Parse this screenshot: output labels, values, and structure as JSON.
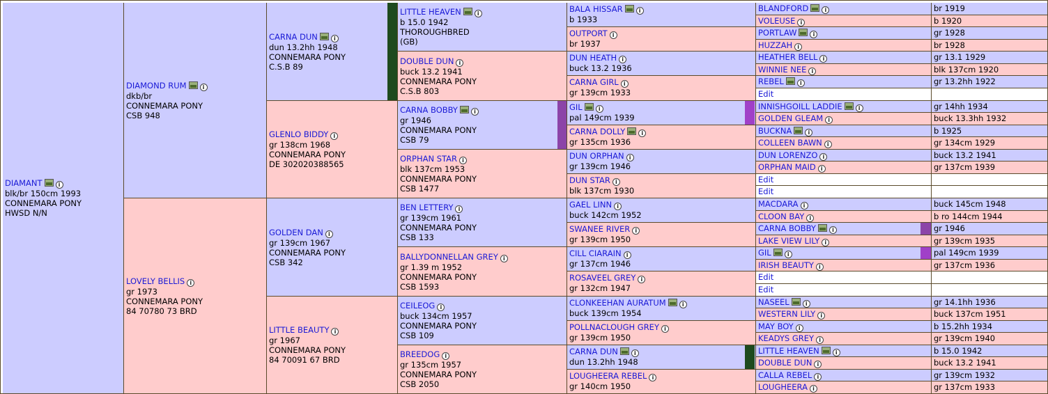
{
  "colors": {
    "male": "#ccccff",
    "female": "#ffcccc",
    "link": "#1a1ad6",
    "marker_dark_green": "#1e4a1e",
    "marker_purple": "#8c44a8",
    "marker_magenta": "#a040c8"
  },
  "icons": {
    "photo": "photo-icon",
    "info": "info-icon"
  },
  "gen1": [
    {
      "name": "DIAMANT",
      "lines": [
        "blk/br 150cm 1993",
        "CONNEMARA PONY",
        "HWSD N/N"
      ],
      "sex": "m"
    }
  ],
  "gen2": [
    {
      "name": "DIAMOND RUM",
      "lines": [
        "dkb/br",
        "CONNEMARA PONY",
        "CSB 948"
      ],
      "sex": "m"
    },
    {
      "name": "LOVELY BELLIS",
      "lines": [
        "gr 1973",
        "CONNEMARA PONY",
        "84 70780 73 BRD"
      ],
      "sex": "f"
    }
  ],
  "gen3": [
    {
      "name": "CARNA DUN",
      "lines": [
        "dun 13.2hh 1948",
        "CONNEMARA PONY",
        "C.S.B 89"
      ],
      "sex": "m"
    },
    {
      "name": "GLENLO BIDDY",
      "lines": [
        "gr 138cm 1968",
        "CONNEMARA PONY",
        "DE 302020388565"
      ],
      "sex": "f"
    },
    {
      "name": "GOLDEN DAN",
      "lines": [
        "gr 139cm 1967",
        "CONNEMARA PONY",
        "CSB 342"
      ],
      "sex": "m"
    },
    {
      "name": "LITTLE BEAUTY",
      "lines": [
        "gr 1967",
        "CONNEMARA PONY",
        "84 70091 67 BRD"
      ],
      "sex": "f"
    }
  ],
  "gen4": [
    {
      "name": "LITTLE HEAVEN",
      "lines": [
        "b 15.0 1942",
        "THOROUGHBRED",
        "(GB)"
      ],
      "sex": "m"
    },
    {
      "name": "DOUBLE DUN",
      "lines": [
        "buck 13.2 1941",
        "CONNEMARA PONY",
        "C.S.B 803"
      ],
      "sex": "f"
    },
    {
      "name": "CARNA BOBBY",
      "lines": [
        "gr 1946",
        "CONNEMARA PONY",
        "CSB 79"
      ],
      "sex": "m"
    },
    {
      "name": "ORPHAN STAR",
      "lines": [
        "blk 137cm 1953",
        "CONNEMARA PONY",
        "CSB 1477"
      ],
      "sex": "f"
    },
    {
      "name": "BEN LETTERY",
      "lines": [
        "gr 139cm 1961",
        "CONNEMARA PONY",
        "CSB 133"
      ],
      "sex": "m"
    },
    {
      "name": "BALLYDONNELLAN GREY",
      "lines": [
        "gr 1.39 m 1952",
        "CONNEMARA PONY",
        "CSB 1593"
      ],
      "sex": "f"
    },
    {
      "name": "CEILEOG",
      "lines": [
        "buck 134cm 1957",
        "CONNEMARA PONY",
        "CSB 109"
      ],
      "sex": "m"
    },
    {
      "name": "BREEDOG",
      "lines": [
        "gr 135cm 1957",
        "CONNEMARA PONY",
        "CSB 2050"
      ],
      "sex": "f"
    }
  ],
  "gen5": [
    {
      "name": "BALA HISSAR",
      "info": "b 1933",
      "sex": "m"
    },
    {
      "name": "OUTPORT",
      "info": "br 1937",
      "sex": "f"
    },
    {
      "name": "DUN HEATH",
      "info": "buck 13.2 1936",
      "sex": "m"
    },
    {
      "name": "CARNA GIRL",
      "info": "gr 139cm 1933",
      "sex": "f"
    },
    {
      "name": "GIL",
      "info": "pal 149cm 1939",
      "sex": "m"
    },
    {
      "name": "CARNA DOLLY",
      "info": "gr 135cm 1936",
      "sex": "f"
    },
    {
      "name": "DUN ORPHAN",
      "info": "gr 139cm 1946",
      "sex": "m"
    },
    {
      "name": "DUN STAR",
      "info": "blk 137cm 1930",
      "sex": "f"
    },
    {
      "name": "GAEL LINN",
      "info": "buck 142cm 1952",
      "sex": "m"
    },
    {
      "name": "SWANEE RIVER",
      "info": "gr 139cm 1950",
      "sex": "f"
    },
    {
      "name": "CILL CIARAIN",
      "info": "gr 137cm 1946",
      "sex": "m"
    },
    {
      "name": "ROSAVEEL GREY",
      "info": "gr 132cm 1947",
      "sex": "f"
    },
    {
      "name": "CLONKEEHAN AURATUM",
      "info": "buck 139cm 1954",
      "sex": "m"
    },
    {
      "name": "POLLNACLOUGH GREY",
      "info": "gr 139cm 1950",
      "sex": "f"
    },
    {
      "name": "CARNA DUN",
      "info": "dun 13.2hh 1948",
      "sex": "m"
    },
    {
      "name": "LOUGHEERA REBEL",
      "info": "gr 140cm 1950",
      "sex": "f"
    }
  ],
  "gen6": [
    {
      "name": "BLANDFORD",
      "info": "br 1919",
      "sex": "m"
    },
    {
      "name": "VOLEUSE",
      "info": "b 1920",
      "sex": "f"
    },
    {
      "name": "PORTLAW",
      "info": "gr 1928",
      "sex": "m"
    },
    {
      "name": "HUZZAH",
      "info": "br 1928",
      "sex": "f"
    },
    {
      "name": "HEATHER BELL",
      "info": "gr 13.1 1929",
      "sex": "m"
    },
    {
      "name": "WINNIE NEE",
      "info": "blk 137cm 1920",
      "sex": "f"
    },
    {
      "name": "REBEL",
      "info": "gr 13.2hh 1922",
      "sex": "m"
    },
    {
      "name": "Edit",
      "info": "",
      "sex": "w"
    },
    {
      "name": "INNISHGOILL LADDIE",
      "info": "gr 14hh 1934",
      "sex": "m"
    },
    {
      "name": "GOLDEN GLEAM",
      "info": "buck 13.3hh 1932",
      "sex": "f"
    },
    {
      "name": "BUCKNA",
      "info": "b 1925",
      "sex": "m"
    },
    {
      "name": "COLLEEN BAWN",
      "info": "gr 134cm 1929",
      "sex": "f"
    },
    {
      "name": "DUN LORENZO",
      "info": "buck 13.2 1941",
      "sex": "m"
    },
    {
      "name": "ORPHAN MAID",
      "info": "gr 137cm 1939",
      "sex": "f"
    },
    {
      "name": "Edit",
      "info": "",
      "sex": "w"
    },
    {
      "name": "Edit",
      "info": "",
      "sex": "w"
    },
    {
      "name": "MACDARA",
      "info": "buck 145cm 1948",
      "sex": "m"
    },
    {
      "name": "CLOON BAY",
      "info": "b ro 144cm 1944",
      "sex": "f"
    },
    {
      "name": "CARNA BOBBY",
      "info": "gr 1946",
      "sex": "m"
    },
    {
      "name": "LAKE VIEW LILY",
      "info": "gr 139cm 1935",
      "sex": "f"
    },
    {
      "name": "GIL",
      "info": "pal 149cm 1939",
      "sex": "m"
    },
    {
      "name": "IRISH BEAUTY",
      "info": "gr 137cm 1936",
      "sex": "f"
    },
    {
      "name": "Edit",
      "info": "",
      "sex": "w"
    },
    {
      "name": "Edit",
      "info": "",
      "sex": "w"
    },
    {
      "name": "NASEEL",
      "info": "gr 14.1hh 1936",
      "sex": "m"
    },
    {
      "name": "WESTERN LILY",
      "info": "buck 137cm 1951",
      "sex": "f"
    },
    {
      "name": "MAY BOY",
      "info": "b 15.2hh 1934",
      "sex": "m"
    },
    {
      "name": "KEADYS GREY",
      "info": "gr 139cm 1940",
      "sex": "f"
    },
    {
      "name": "LITTLE HEAVEN",
      "info": "b 15.0 1942",
      "sex": "m"
    },
    {
      "name": "DOUBLE DUN",
      "info": "buck 13.2 1941",
      "sex": "f"
    },
    {
      "name": "CALLA REBEL",
      "info": "gr 139cm 1932",
      "sex": "m"
    },
    {
      "name": "LOUGHEERA",
      "info": "gr 137cm 1933",
      "sex": "f"
    }
  ]
}
